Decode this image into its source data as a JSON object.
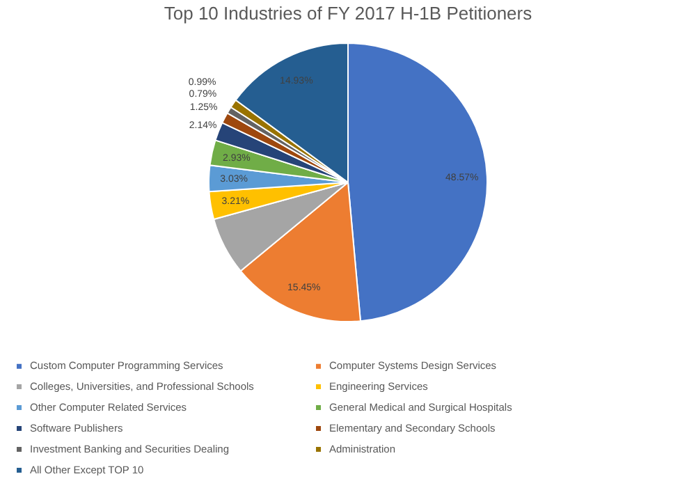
{
  "chart_data": {
    "type": "pie",
    "title": "Top 10 Industries of FY 2017 H-1B Petitioners",
    "categories": [
      "Custom Computer Programming Services",
      "Computer Systems Design Services",
      "Colleges, Universities, and Professional Schools",
      "Engineering Services",
      "Other Computer Related Services",
      "General Medical and Surgical Hospitals",
      "Software Publishers",
      "Elementary and Secondary Schools",
      "Investment Banking and Securities Dealing",
      "Administration",
      "All Other Except TOP 10"
    ],
    "values": [
      48.57,
      15.45,
      6.71,
      3.21,
      3.03,
      2.93,
      2.14,
      1.25,
      0.79,
      0.99,
      14.93
    ],
    "value_labels": [
      "48.57%",
      "15.45%",
      null,
      "3.21%",
      "3.03%",
      "2.93%",
      "2.14%",
      "1.25%",
      "0.79%",
      "0.99%",
      "14.93%"
    ],
    "colors": [
      "#4472c4",
      "#ed7d31",
      "#a5a5a5",
      "#ffc000",
      "#5b9bd5",
      "#70ad47",
      "#264478",
      "#9e480e",
      "#636363",
      "#997300",
      "#255e91"
    ],
    "legend": "bottom"
  }
}
